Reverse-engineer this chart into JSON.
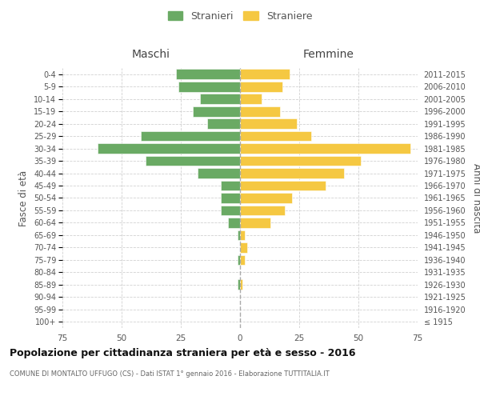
{
  "age_groups": [
    "100+",
    "95-99",
    "90-94",
    "85-89",
    "80-84",
    "75-79",
    "70-74",
    "65-69",
    "60-64",
    "55-59",
    "50-54",
    "45-49",
    "40-44",
    "35-39",
    "30-34",
    "25-29",
    "20-24",
    "15-19",
    "10-14",
    "5-9",
    "0-4"
  ],
  "birth_years": [
    "≤ 1915",
    "1916-1920",
    "1921-1925",
    "1926-1930",
    "1931-1935",
    "1936-1940",
    "1941-1945",
    "1946-1950",
    "1951-1955",
    "1956-1960",
    "1961-1965",
    "1966-1970",
    "1971-1975",
    "1976-1980",
    "1981-1985",
    "1986-1990",
    "1991-1995",
    "1996-2000",
    "2001-2005",
    "2006-2010",
    "2011-2015"
  ],
  "maschi": [
    0,
    0,
    0,
    1,
    0,
    1,
    0,
    1,
    5,
    8,
    8,
    8,
    18,
    40,
    60,
    42,
    14,
    20,
    17,
    26,
    27
  ],
  "femmine": [
    0,
    0,
    0,
    1,
    0,
    2,
    3,
    2,
    13,
    19,
    22,
    36,
    44,
    51,
    72,
    30,
    24,
    17,
    9,
    18,
    21
  ],
  "maschi_color": "#6aaa64",
  "femmine_color": "#f5c842",
  "title": "Popolazione per cittadinanza straniera per età e sesso - 2016",
  "subtitle": "COMUNE DI MONTALTO UFFUGO (CS) - Dati ISTAT 1° gennaio 2016 - Elaborazione TUTTITALIA.IT",
  "xlabel_left": "Maschi",
  "xlabel_right": "Femmine",
  "ylabel_left": "Fasce di età",
  "ylabel_right": "Anni di nascita",
  "xlim": 75,
  "legend_maschi": "Stranieri",
  "legend_femmine": "Straniere",
  "bg_color": "#ffffff",
  "grid_color": "#cccccc"
}
